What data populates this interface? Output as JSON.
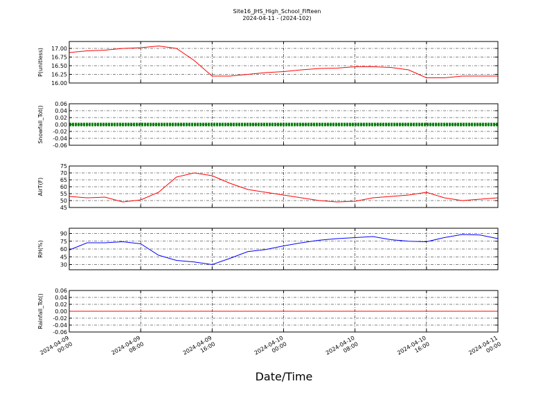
{
  "title": "Site16_JHS_High_School_Fifteen",
  "subtitle": "2024-04-11 - (2024-102)",
  "xlabel": "Date/Time",
  "xlim": [
    "2024-04-09 00:00",
    "2024-04-11 00:00"
  ],
  "xticks": [
    "2024-04-09 00:00",
    "2024-04-09 08:00",
    "2024-04-09 16:00",
    "2024-04-10 00:00",
    "2024-04-10 08:00",
    "2024-04-10 16:00",
    "2024-04-11 00:00"
  ],
  "x": [
    "2024-04-09 00:00",
    "2024-04-09 02:00",
    "2024-04-09 04:00",
    "2024-04-09 06:00",
    "2024-04-09 08:00",
    "2024-04-09 10:00",
    "2024-04-09 12:00",
    "2024-04-09 14:00",
    "2024-04-09 16:00",
    "2024-04-09 18:00",
    "2024-04-09 20:00",
    "2024-04-09 22:00",
    "2024-04-10 00:00",
    "2024-04-10 02:00",
    "2024-04-10 04:00",
    "2024-04-10 06:00",
    "2024-04-10 08:00",
    "2024-04-10 10:00",
    "2024-04-10 12:00",
    "2024-04-10 14:00",
    "2024-04-10 16:00",
    "2024-04-10 18:00",
    "2024-04-10 20:00",
    "2024-04-10 22:00",
    "2024-04-11 00:00"
  ],
  "chart_data": [
    {
      "type": "line",
      "ylabel": "P(unitless)",
      "color": "#ff0000",
      "grid": true,
      "ylim": [
        16.0,
        17.2
      ],
      "yticks": [
        {
          "value": 16.0,
          "label": "16.00"
        },
        {
          "value": 16.25,
          "label": "16.25"
        },
        {
          "value": 16.5,
          "label": "16.50"
        },
        {
          "value": 16.75,
          "label": "16.75"
        },
        {
          "value": 17.0,
          "label": "17.00"
        }
      ],
      "values": [
        16.88,
        16.93,
        16.95,
        17.0,
        17.02,
        17.07,
        17.0,
        16.65,
        16.2,
        16.2,
        16.25,
        16.3,
        16.33,
        16.38,
        16.42,
        16.43,
        16.47,
        16.47,
        16.45,
        16.38,
        16.15,
        16.15,
        16.2,
        16.2,
        16.2
      ]
    },
    {
      "type": "line",
      "ylabel": "Snowfall_Tot()",
      "color": "#008000",
      "grid": true,
      "thick": true,
      "ylim": [
        -0.06,
        0.06
      ],
      "yticks": [
        {
          "value": -0.06,
          "label": "-0.06"
        },
        {
          "value": -0.04,
          "label": "-0.04"
        },
        {
          "value": -0.02,
          "label": "-0.02"
        },
        {
          "value": 0,
          "label": "0.00"
        },
        {
          "value": 0.02,
          "label": "0.02"
        },
        {
          "value": 0.04,
          "label": "0.04"
        },
        {
          "value": 0.06,
          "label": "0.06"
        }
      ],
      "values": [
        0,
        0,
        0,
        0,
        0,
        0,
        0,
        0,
        0,
        0,
        0,
        0,
        0,
        0,
        0,
        0,
        0,
        0,
        0,
        0,
        0,
        0,
        0,
        0,
        0
      ]
    },
    {
      "type": "line",
      "ylabel": "AirT(F)",
      "color": "#ff0000",
      "grid": true,
      "ylim": [
        45,
        75
      ],
      "yticks": [
        45,
        50,
        55,
        60,
        65,
        70,
        75
      ],
      "values": [
        53,
        52,
        52.5,
        49,
        50.5,
        56,
        67,
        70,
        68,
        62.5,
        58,
        56,
        54,
        52,
        50,
        49,
        49.5,
        52,
        53,
        54,
        56,
        52,
        50,
        51,
        52
      ]
    },
    {
      "type": "line",
      "ylabel": "RH(%)",
      "color": "#0000ff",
      "grid": true,
      "ylim": [
        20,
        100
      ],
      "yticks": [
        30,
        45,
        60,
        75,
        90
      ],
      "values": [
        58,
        72,
        72,
        74,
        70,
        48,
        38,
        35,
        30,
        42,
        55,
        59,
        66,
        72,
        77,
        80,
        82,
        84,
        78,
        75,
        74,
        82,
        88,
        87,
        80
      ]
    },
    {
      "type": "line",
      "ylabel": "Rainfall_Tot()",
      "color": "#ff0000",
      "grid": true,
      "ylim": [
        -0.06,
        0.06
      ],
      "yticks": [
        {
          "value": -0.06,
          "label": "-0.06"
        },
        {
          "value": -0.04,
          "label": "-0.04"
        },
        {
          "value": -0.02,
          "label": "-0.02"
        },
        {
          "value": 0,
          "label": "0.00"
        },
        {
          "value": 0.02,
          "label": "0.02"
        },
        {
          "value": 0.04,
          "label": "0.04"
        },
        {
          "value": 0.06,
          "label": "0.06"
        }
      ],
      "values": [
        0,
        0,
        0,
        0,
        0,
        0,
        0,
        0,
        0,
        0,
        0,
        0,
        0,
        0,
        0,
        0,
        0,
        0,
        0,
        0,
        0,
        0,
        0,
        0,
        0
      ]
    }
  ]
}
